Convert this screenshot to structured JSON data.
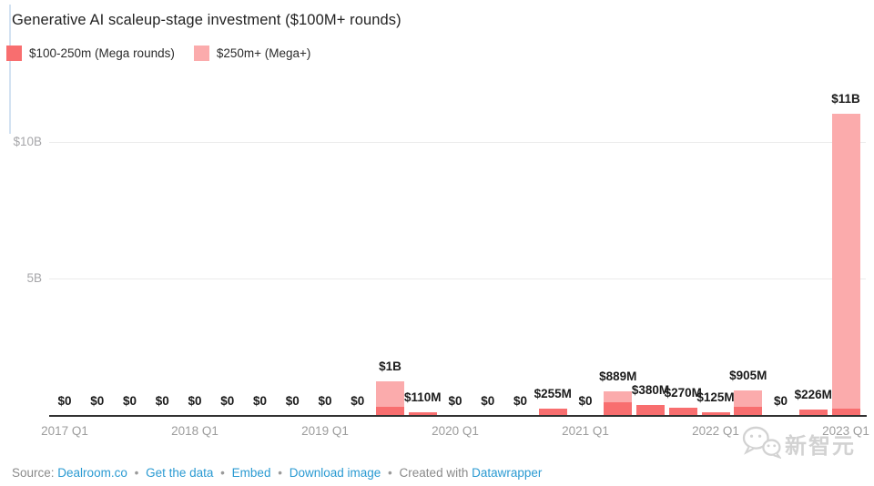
{
  "title": "Generative AI scaleup-stage investment ($100M+ rounds)",
  "colors": {
    "mega": "#f86e6f",
    "megaplus": "#fbabac",
    "axis": "#323232",
    "gridline": "#ececec",
    "link_blue": "#2a9ad2"
  },
  "legend": {
    "items": [
      {
        "label": "$100-250m (Mega rounds)",
        "color": "#f86e6f"
      },
      {
        "label": "$250m+ (Mega+)",
        "color": "#fbabac"
      }
    ]
  },
  "chart_data": {
    "type": "bar",
    "stacked": true,
    "title": "Generative AI scaleup-stage investment ($100M+ rounds)",
    "xlabel": "",
    "ylabel": "",
    "unit": "USD millions",
    "ylim": [
      0,
      11100
    ],
    "grid": "horizontal",
    "legend_position": "top-left",
    "categories": [
      "2017 Q1",
      "2017 Q2",
      "2017 Q3",
      "2017 Q4",
      "2018 Q1",
      "2018 Q2",
      "2018 Q3",
      "2018 Q4",
      "2019 Q1",
      "2019 Q2",
      "2019 Q3",
      "2019 Q4",
      "2020 Q1",
      "2020 Q2",
      "2020 Q3",
      "2020 Q4",
      "2021 Q1",
      "2021 Q2",
      "2021 Q3",
      "2021 Q4",
      "2022 Q1",
      "2022 Q2",
      "2022 Q3",
      "2022 Q4",
      "2023 Q1"
    ],
    "series": [
      {
        "name": "$100-250m (Mega rounds)",
        "color": "#f86e6f",
        "values": [
          0,
          0,
          0,
          0,
          0,
          0,
          0,
          0,
          0,
          0,
          300,
          110,
          0,
          0,
          0,
          255,
          0,
          480,
          380,
          270,
          125,
          300,
          0,
          226,
          265
        ]
      },
      {
        "name": "$250m+ (Mega+)",
        "color": "#fbabac",
        "values": [
          0,
          0,
          0,
          0,
          0,
          0,
          0,
          0,
          0,
          0,
          960,
          0,
          0,
          0,
          0,
          0,
          0,
          409,
          0,
          0,
          0,
          605,
          0,
          0,
          10735
        ]
      }
    ],
    "bar_labels": [
      "$0",
      "$0",
      "$0",
      "$0",
      "$0",
      "$0",
      "$0",
      "$0",
      "$0",
      "$0",
      "$1B",
      "$110M",
      "$0",
      "$0",
      "$0",
      "$255M",
      "$0",
      "$889M",
      "$380M",
      "$270M",
      "$125M",
      "$905M",
      "$0",
      "$226M",
      "$11B"
    ],
    "x_tick_labels": [
      "2017 Q1",
      "2018 Q1",
      "2019 Q1",
      "2020 Q1",
      "2021 Q1",
      "2022 Q1",
      "2023 Q1"
    ],
    "x_tick_indices": [
      0,
      4,
      8,
      12,
      16,
      20,
      24
    ],
    "y_gridlines": [
      {
        "value": 5000,
        "label": "5B"
      },
      {
        "value": 10000,
        "label": "$10B"
      }
    ]
  },
  "footer": {
    "source_label": "Source:",
    "source_link": "Dealroom.co",
    "sep": "•",
    "links": [
      "Get the data",
      "Embed",
      "Download image"
    ],
    "created_with": "Created with",
    "tool": "Datawrapper"
  },
  "watermark": {
    "text": "新智元",
    "icon": "wechat-chat-bubbles-icon"
  }
}
